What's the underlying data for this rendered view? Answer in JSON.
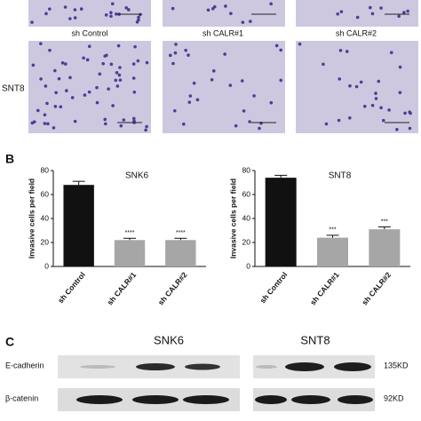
{
  "panel_a": {
    "row_label": "SNT8",
    "columns": [
      "sh Control",
      "sh CALR#1",
      "sh CALR#2"
    ]
  },
  "panel_b_label": "B",
  "chart_data": [
    {
      "type": "bar",
      "title": "SNK6",
      "y_label": "Invasive cells per field",
      "categories": [
        "sh Control",
        "sh CALR#1",
        "sh CALR#2"
      ],
      "values": [
        68,
        22,
        22
      ],
      "errors": [
        3,
        1.5,
        1.5
      ],
      "significance": [
        null,
        "****",
        "****"
      ],
      "colors": [
        "#111111",
        "#a6a6a6",
        "#a6a6a6"
      ],
      "ylim": [
        0,
        80
      ],
      "yticks": [
        0,
        20,
        40,
        60,
        80
      ]
    },
    {
      "type": "bar",
      "title": "SNT8",
      "y_label": "Invasive cells per field",
      "categories": [
        "sh Control",
        "sh CALR#1",
        "sh CALR#2"
      ],
      "values": [
        74,
        24,
        31
      ],
      "errors": [
        2,
        2,
        2
      ],
      "significance": [
        null,
        "***",
        "***"
      ],
      "colors": [
        "#111111",
        "#a6a6a6",
        "#a6a6a6"
      ],
      "ylim": [
        0,
        80
      ],
      "yticks": [
        0,
        20,
        40,
        60,
        80
      ]
    }
  ],
  "panel_c": {
    "label": "C",
    "groups": [
      "SNK6",
      "SNT8"
    ],
    "rows": [
      {
        "name": "E-cadherin",
        "size": "135KD"
      },
      {
        "name": "β-catenin",
        "size": "92KD"
      }
    ]
  }
}
